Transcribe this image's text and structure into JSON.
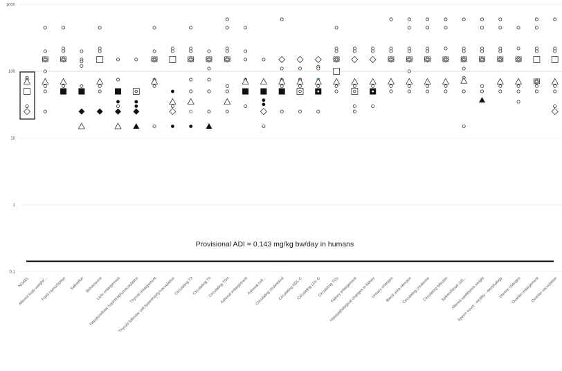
{
  "chart_data": {
    "type": "scatter",
    "title": "",
    "annotation": "Provisional ADI = 0.143 mg/kg bw/day in humans",
    "adi_value": 0.143,
    "xlabel": "",
    "ylabel": "",
    "yscale": "log",
    "ylim": [
      0.1,
      1000
    ],
    "yticks": [
      "1000",
      "100",
      "10",
      "1",
      "0.1"
    ],
    "ytick_values": [
      1000,
      100,
      10,
      1,
      0.1
    ],
    "grid": true,
    "marker_legend": {
      "o": "open circle",
      "dot": "filled circle",
      "ob": "open circle (blue)",
      "tri": "open triangle",
      "ftri": "filled triangle",
      "sq": "open square",
      "fsq": "filled square",
      "sqdot": "open square with dot",
      "fsqdot": "filled square with dot",
      "dia": "open diamond",
      "fdia": "filled diamond",
      "combo": "overlapping square/diamond/circle"
    },
    "categories": [
      {
        "label": "NOAEL",
        "points": [
          [
            80,
            "o"
          ],
          [
            75,
            "o"
          ],
          [
            70,
            "tri"
          ],
          [
            50,
            "sq"
          ],
          [
            30,
            "o"
          ],
          [
            25,
            "dia"
          ]
        ]
      },
      {
        "label": "Altered body weight/...",
        "points": [
          [
            450,
            "o"
          ],
          [
            200,
            "o"
          ],
          [
            150,
            "combo"
          ],
          [
            100,
            "o"
          ],
          [
            70,
            "tri"
          ],
          [
            60,
            "o"
          ],
          [
            50,
            "o"
          ],
          [
            25,
            "o"
          ]
        ]
      },
      {
        "label": "Food consumption",
        "points": [
          [
            450,
            "o"
          ],
          [
            220,
            "o"
          ],
          [
            200,
            "o"
          ],
          [
            150,
            "combo"
          ],
          [
            70,
            "tri"
          ],
          [
            60,
            "o"
          ],
          [
            50,
            "fsq"
          ]
        ]
      },
      {
        "label": "Salivation",
        "points": [
          [
            200,
            "o"
          ],
          [
            150,
            "o"
          ],
          [
            140,
            "o"
          ],
          [
            120,
            "o"
          ],
          [
            60,
            "o"
          ],
          [
            50,
            "fsq"
          ],
          [
            25,
            "fdia"
          ],
          [
            15,
            "tri"
          ]
        ]
      },
      {
        "label": "Behavioural",
        "points": [
          [
            450,
            "o"
          ],
          [
            220,
            "o"
          ],
          [
            200,
            "o"
          ],
          [
            150,
            "sq"
          ],
          [
            70,
            "tri"
          ],
          [
            60,
            "o"
          ],
          [
            50,
            "o"
          ],
          [
            25,
            "fdia"
          ]
        ]
      },
      {
        "label": "Liver enlargement",
        "points": [
          [
            150,
            "o"
          ],
          [
            75,
            "o"
          ],
          [
            50,
            "fsq"
          ],
          [
            35,
            "dot"
          ],
          [
            30,
            "o"
          ],
          [
            25,
            "fdia"
          ],
          [
            15,
            "tri"
          ]
        ]
      },
      {
        "label": "Hepatocellular hypertrophy/vacuolation",
        "points": [
          [
            150,
            "o"
          ],
          [
            50,
            "sqdot"
          ],
          [
            35,
            "dot"
          ],
          [
            30,
            "dot"
          ],
          [
            25,
            "fdia"
          ],
          [
            15,
            "ftri"
          ]
        ]
      },
      {
        "label": "Thyroid enlargement",
        "points": [
          [
            450,
            "o"
          ],
          [
            200,
            "o"
          ],
          [
            150,
            "combo"
          ],
          [
            75,
            "o"
          ],
          [
            70,
            "tri"
          ],
          [
            60,
            "o"
          ],
          [
            15,
            "o"
          ]
        ]
      },
      {
        "label": "Thyroid follicular cell hypertrophy/vacuolation",
        "points": [
          [
            220,
            "o"
          ],
          [
            200,
            "o"
          ],
          [
            150,
            "sq"
          ],
          [
            50,
            "dot"
          ],
          [
            35,
            "tri"
          ],
          [
            30,
            "o"
          ],
          [
            25,
            "dia"
          ],
          [
            15,
            "dot"
          ]
        ]
      },
      {
        "label": "Circulating T3",
        "points": [
          [
            450,
            "o"
          ],
          [
            220,
            "o"
          ],
          [
            200,
            "o"
          ],
          [
            150,
            "combo"
          ],
          [
            75,
            "o"
          ],
          [
            50,
            "o"
          ],
          [
            35,
            "tri"
          ],
          [
            25,
            "ob"
          ],
          [
            15,
            "dot"
          ]
        ]
      },
      {
        "label": "Circulating T4",
        "points": [
          [
            200,
            "o"
          ],
          [
            150,
            "combo"
          ],
          [
            110,
            "o"
          ],
          [
            75,
            "o"
          ],
          [
            50,
            "o"
          ],
          [
            25,
            "o"
          ],
          [
            15,
            "ftri"
          ]
        ]
      },
      {
        "label": "Circulating TSH",
        "points": [
          [
            600,
            "o"
          ],
          [
            450,
            "o"
          ],
          [
            220,
            "o"
          ],
          [
            200,
            "o"
          ],
          [
            150,
            "combo"
          ],
          [
            60,
            "o"
          ],
          [
            50,
            "o"
          ],
          [
            35,
            "tri"
          ],
          [
            25,
            "o"
          ]
        ]
      },
      {
        "label": "Adrenal enlargement",
        "points": [
          [
            450,
            "o"
          ],
          [
            200,
            "o"
          ],
          [
            150,
            "o"
          ],
          [
            75,
            "o"
          ],
          [
            70,
            "tri"
          ],
          [
            50,
            "fsq"
          ],
          [
            30,
            "o"
          ]
        ]
      },
      {
        "label": "Adrenal cell...",
        "points": [
          [
            150,
            "o"
          ],
          [
            70,
            "tri"
          ],
          [
            50,
            "fsq"
          ],
          [
            37,
            "dot"
          ],
          [
            32,
            "dot"
          ],
          [
            25,
            "dia"
          ],
          [
            15,
            "o"
          ]
        ]
      },
      {
        "label": "Circulating cholesterol",
        "points": [
          [
            600,
            "o"
          ],
          [
            150,
            "dia"
          ],
          [
            110,
            "o"
          ],
          [
            75,
            "o"
          ],
          [
            70,
            "tri"
          ],
          [
            60,
            "o"
          ],
          [
            50,
            "fsq"
          ],
          [
            25,
            "o"
          ]
        ]
      },
      {
        "label": "Circulating HDL-C",
        "points": [
          [
            150,
            "dia"
          ],
          [
            110,
            "o"
          ],
          [
            75,
            "o"
          ],
          [
            70,
            "tri"
          ],
          [
            60,
            "o"
          ],
          [
            50,
            "sqdot"
          ],
          [
            25,
            "o"
          ]
        ]
      },
      {
        "label": "Circulating LDL-C",
        "points": [
          [
            150,
            "dia"
          ],
          [
            118,
            "o"
          ],
          [
            110,
            "o"
          ],
          [
            75,
            "ob"
          ],
          [
            70,
            "tri"
          ],
          [
            60,
            "o"
          ],
          [
            50,
            "fsqdot"
          ],
          [
            25,
            "o"
          ]
        ]
      },
      {
        "label": "Circulating TGs",
        "points": [
          [
            450,
            "o"
          ],
          [
            220,
            "o"
          ],
          [
            200,
            "o"
          ],
          [
            150,
            "combo"
          ],
          [
            100,
            "sq"
          ],
          [
            70,
            "tri"
          ],
          [
            60,
            "o"
          ],
          [
            50,
            "o"
          ]
        ]
      },
      {
        "label": "Kidney enlargement",
        "points": [
          [
            220,
            "o"
          ],
          [
            200,
            "o"
          ],
          [
            150,
            "dia"
          ],
          [
            70,
            "tri"
          ],
          [
            60,
            "o"
          ],
          [
            50,
            "sqdot"
          ],
          [
            30,
            "o"
          ],
          [
            25,
            "o"
          ]
        ]
      },
      {
        "label": "Histopathological changes in kidney",
        "points": [
          [
            220,
            "o"
          ],
          [
            200,
            "o"
          ],
          [
            150,
            "dia"
          ],
          [
            70,
            "tri"
          ],
          [
            60,
            "o"
          ],
          [
            50,
            "fsqdot"
          ],
          [
            30,
            "o"
          ]
        ]
      },
      {
        "label": "Urinary changes",
        "points": [
          [
            600,
            "o"
          ],
          [
            220,
            "o"
          ],
          [
            200,
            "o"
          ],
          [
            150,
            "combo"
          ],
          [
            70,
            "tri"
          ],
          [
            60,
            "o"
          ],
          [
            50,
            "o"
          ]
        ]
      },
      {
        "label": "Blood urea nitrogen",
        "points": [
          [
            600,
            "o"
          ],
          [
            450,
            "o"
          ],
          [
            220,
            "o"
          ],
          [
            200,
            "o"
          ],
          [
            150,
            "combo"
          ],
          [
            100,
            "o"
          ],
          [
            70,
            "tri"
          ],
          [
            60,
            "o"
          ],
          [
            50,
            "o"
          ]
        ]
      },
      {
        "label": "Circulating creatinine",
        "points": [
          [
            600,
            "o"
          ],
          [
            450,
            "o"
          ],
          [
            220,
            "o"
          ],
          [
            200,
            "o"
          ],
          [
            150,
            "combo"
          ],
          [
            70,
            "tri"
          ],
          [
            60,
            "o"
          ],
          [
            50,
            "o"
          ]
        ]
      },
      {
        "label": "Circulating bilirubin",
        "points": [
          [
            600,
            "o"
          ],
          [
            450,
            "o"
          ],
          [
            220,
            "o"
          ],
          [
            150,
            "combo"
          ],
          [
            70,
            "tri"
          ],
          [
            60,
            "o"
          ],
          [
            50,
            "o"
          ]
        ]
      },
      {
        "label": "Spleen/blood cell...",
        "points": [
          [
            600,
            "o"
          ],
          [
            220,
            "o"
          ],
          [
            200,
            "o"
          ],
          [
            150,
            "combo"
          ],
          [
            110,
            "o"
          ],
          [
            80,
            "o"
          ],
          [
            72,
            "tri"
          ],
          [
            50,
            "o"
          ],
          [
            15,
            "o"
          ]
        ]
      },
      {
        "label": "Altered epididymis weight",
        "points": [
          [
            600,
            "o"
          ],
          [
            450,
            "o"
          ],
          [
            220,
            "o"
          ],
          [
            200,
            "o"
          ],
          [
            150,
            "combo"
          ],
          [
            60,
            "o"
          ],
          [
            50,
            "o"
          ],
          [
            37,
            "ftri"
          ]
        ]
      },
      {
        "label": "Sperm count - motility - morphology",
        "points": [
          [
            600,
            "o"
          ],
          [
            450,
            "o"
          ],
          [
            220,
            "o"
          ],
          [
            200,
            "o"
          ],
          [
            150,
            "combo"
          ],
          [
            70,
            "tri"
          ],
          [
            60,
            "o"
          ],
          [
            50,
            "o"
          ]
        ]
      },
      {
        "label": "Uterine changes",
        "points": [
          [
            450,
            "o"
          ],
          [
            220,
            "o"
          ],
          [
            150,
            "combo"
          ],
          [
            70,
            "tri"
          ],
          [
            60,
            "o"
          ],
          [
            50,
            "o"
          ],
          [
            35,
            "o"
          ]
        ]
      },
      {
        "label": "Ovarian enlargement",
        "points": [
          [
            600,
            "o"
          ],
          [
            450,
            "o"
          ],
          [
            220,
            "o"
          ],
          [
            200,
            "o"
          ],
          [
            150,
            "sq"
          ],
          [
            70,
            "combo"
          ],
          [
            60,
            "o"
          ],
          [
            50,
            "o"
          ]
        ]
      },
      {
        "label": "Ovarian vacuolation",
        "points": [
          [
            600,
            "o"
          ],
          [
            220,
            "o"
          ],
          [
            200,
            "o"
          ],
          [
            150,
            "sq"
          ],
          [
            70,
            "tri"
          ],
          [
            60,
            "o"
          ],
          [
            50,
            "o"
          ],
          [
            30,
            "o"
          ],
          [
            25,
            "dia"
          ]
        ]
      }
    ]
  }
}
